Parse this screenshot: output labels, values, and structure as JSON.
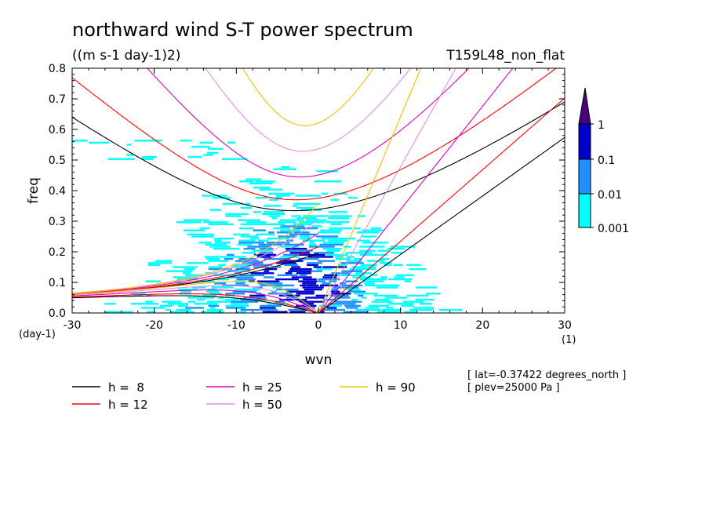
{
  "chart_data": {
    "type": "heatmap",
    "title": "northward wind S-T power spectrum",
    "subtitle": "((m s-1 day-1)2)",
    "run_label": "T159L48_non_flat",
    "xlabel": "wvn",
    "ylabel": "freq",
    "x_unit": "(1)",
    "y_unit": "(day-1)",
    "xlim": [
      -30,
      30
    ],
    "ylim": [
      0,
      0.8
    ],
    "x_ticks": [
      "-30",
      "-20",
      "-10",
      "0",
      "10",
      "20",
      "30"
    ],
    "y_ticks": [
      "0.0",
      "0.1",
      "0.2",
      "0.3",
      "0.4",
      "0.5",
      "0.6",
      "0.7",
      "0.8"
    ],
    "colorbar": {
      "levels": [
        "0.001",
        "0.01",
        "0.1",
        "1"
      ],
      "colors": [
        "#00ffff",
        "#1e90ff",
        "#0000cd",
        "#2e1a87",
        "#4b0082"
      ]
    },
    "dispersion_curves": [
      {
        "name": "h =  8",
        "h": 8,
        "color": "#000000"
      },
      {
        "name": "h = 12",
        "h": 12,
        "color": "#ff0000"
      },
      {
        "name": "h = 25",
        "h": 25,
        "color": "#e000c0"
      },
      {
        "name": "h = 50",
        "h": 50,
        "color": "#e090e0"
      },
      {
        "name": "h = 90",
        "h": 90,
        "color": "#f0c000"
      }
    ],
    "annotations": [
      "[ lat=-0.37422 degrees_north ]",
      "[ plev=25000 Pa ]"
    ]
  }
}
